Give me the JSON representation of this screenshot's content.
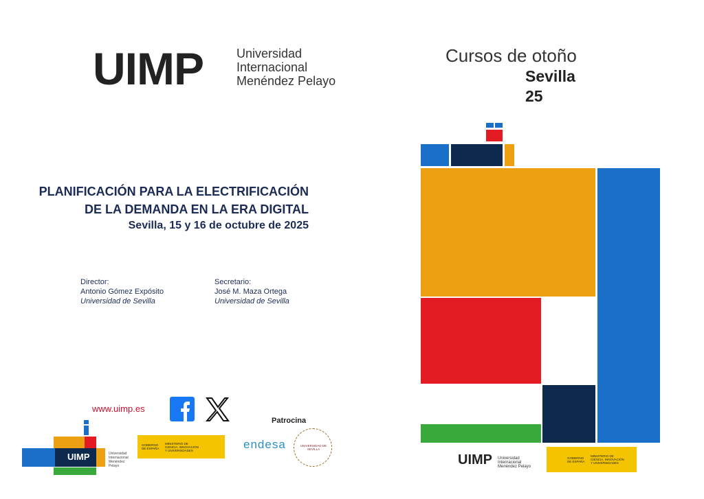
{
  "header": {
    "logo": "UIMP",
    "university": [
      "Universidad",
      "Internacional",
      "Menéndez Pelayo"
    ]
  },
  "series": {
    "title": "Cursos de otoño",
    "city": "Sevilla",
    "year": "25"
  },
  "course": {
    "title": [
      "PLANIFICACIÓN PARA LA ELECTRIFICACIÓN",
      "DE LA DEMANDA EN LA ERA DIGITAL"
    ],
    "date": "Sevilla, 15 y 16 de octubre de 2025"
  },
  "people": [
    {
      "role": "Director:",
      "name": "Antonio Gómez Expósito",
      "affiliation": "Universidad de Sevilla"
    },
    {
      "role": "Secretario:",
      "name": "José M. Maza Ortega",
      "affiliation": "Universidad de Sevilla"
    }
  ],
  "footer": {
    "website": "www.uimp.es",
    "sponsor_label": "Patrocina",
    "sponsor": "endesa",
    "us_logo": "UNIVERSIDAD DE SEVILLA",
    "uimp_small": "UIMP",
    "uimp_small_name": "Universidad Internacional Menéndez Pelayo",
    "gov": "GOBIERNO DE ESPAÑA",
    "ministry": "MINISTERIO DE CIENCIA, INNOVACIÓN Y UNIVERSIDADES"
  }
}
